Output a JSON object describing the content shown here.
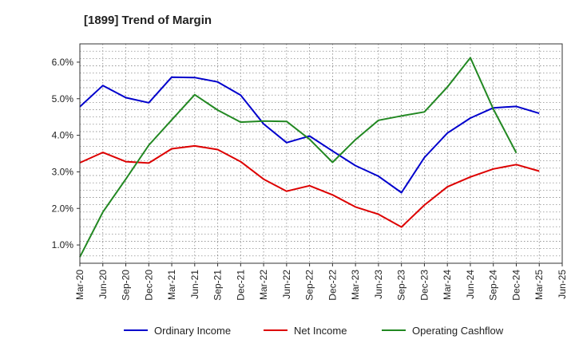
{
  "chart_data": {
    "type": "line",
    "title": "[1899]  Trend of Margin",
    "xlabel": "",
    "ylabel": "",
    "categories": [
      "Mar-20",
      "Jun-20",
      "Sep-20",
      "Dec-20",
      "Mar-21",
      "Jun-21",
      "Sep-21",
      "Dec-21",
      "Mar-22",
      "Jun-22",
      "Sep-22",
      "Dec-22",
      "Mar-23",
      "Jun-23",
      "Sep-23",
      "Dec-23",
      "Mar-24",
      "Jun-24",
      "Sep-24",
      "Dec-24",
      "Mar-25",
      "Jun-25"
    ],
    "ylim": [
      0.5,
      6.5
    ],
    "yticks": [
      1.0,
      2.0,
      3.0,
      4.0,
      5.0,
      6.0
    ],
    "ytick_labels": [
      "1.0%",
      "2.0%",
      "3.0%",
      "4.0%",
      "5.0%",
      "6.0%"
    ],
    "grid": true,
    "legend_position": "bottom",
    "series": [
      {
        "name": "Ordinary Income",
        "color": "#0000cc",
        "values": [
          4.78,
          5.36,
          5.03,
          4.89,
          5.59,
          5.58,
          5.46,
          5.1,
          4.31,
          3.8,
          3.98,
          3.57,
          3.17,
          2.88,
          2.43,
          3.39,
          4.06,
          4.47,
          4.75,
          4.79,
          4.6,
          null
        ]
      },
      {
        "name": "Net Income",
        "color": "#dd0000",
        "values": [
          3.25,
          3.53,
          3.28,
          3.24,
          3.63,
          3.71,
          3.61,
          3.28,
          2.8,
          2.47,
          2.62,
          2.37,
          2.04,
          1.84,
          1.49,
          2.09,
          2.59,
          2.86,
          3.08,
          3.2,
          3.02,
          null
        ]
      },
      {
        "name": "Operating Cashflow",
        "color": "#228822",
        "values": [
          0.67,
          1.9,
          2.8,
          3.73,
          4.42,
          5.11,
          4.69,
          4.36,
          4.39,
          4.38,
          3.89,
          3.26,
          3.88,
          4.41,
          4.53,
          4.64,
          5.32,
          6.12,
          4.72,
          3.52,
          null,
          null
        ]
      }
    ]
  }
}
